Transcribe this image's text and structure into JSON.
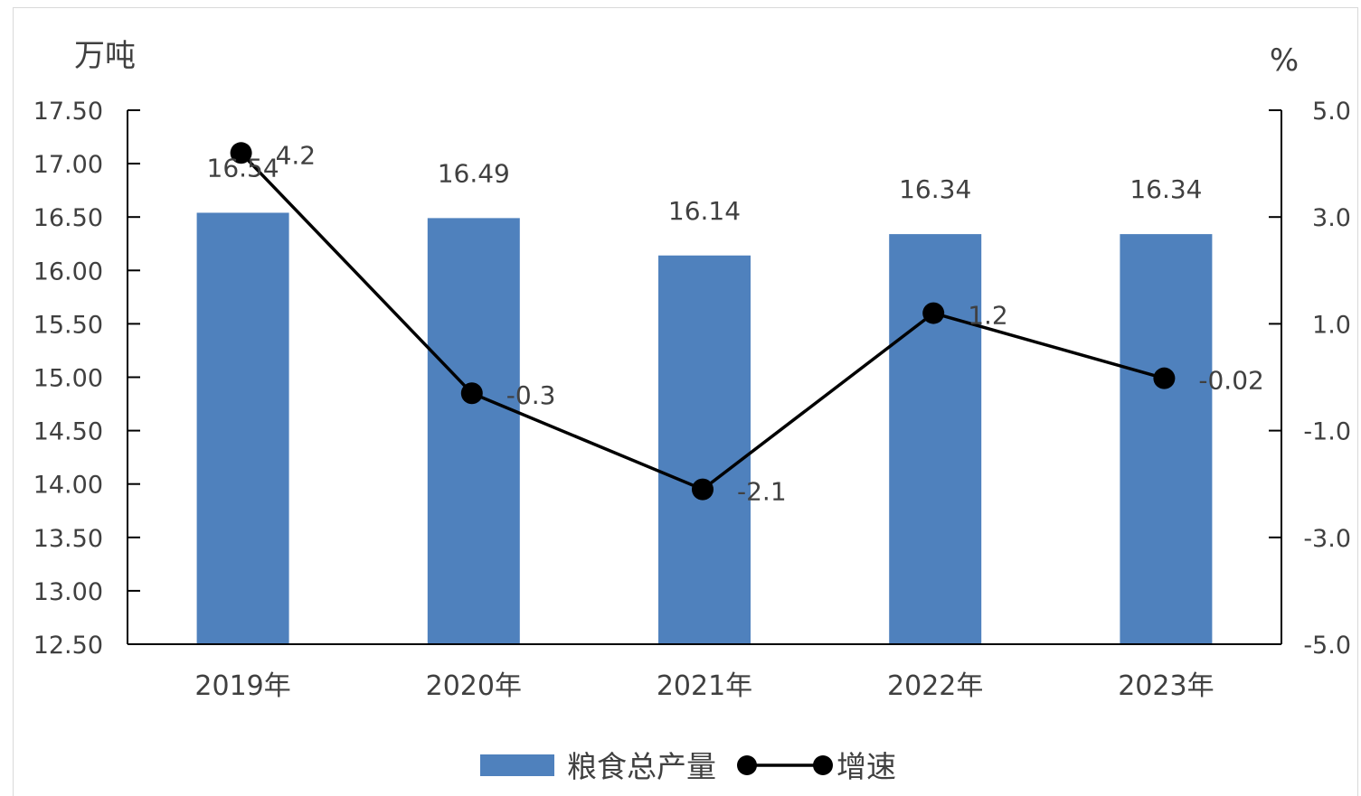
{
  "chart_data": {
    "type": "bar",
    "categories": [
      "2019年",
      "2020年",
      "2021年",
      "2022年",
      "2023年"
    ],
    "series": [
      {
        "name": "粮食总产量",
        "type": "bar",
        "axis": "left",
        "color": "#4f81bd",
        "values": [
          16.54,
          16.49,
          16.14,
          16.34,
          16.34
        ],
        "labels": [
          "16.54",
          "16.49",
          "16.14",
          "16.34",
          "16.34"
        ]
      },
      {
        "name": "增速",
        "type": "line",
        "axis": "right",
        "color": "#000000",
        "values": [
          4.2,
          -0.3,
          -2.1,
          1.2,
          -0.02
        ],
        "labels": [
          "4.2",
          "-0.3",
          "-2.1",
          "1.2",
          "-0.02"
        ]
      }
    ],
    "left_axis": {
      "unit": "万吨",
      "ylim": [
        12.5,
        17.5
      ],
      "ticks": [
        "12.50",
        "13.00",
        "13.50",
        "14.00",
        "14.50",
        "15.00",
        "15.50",
        "16.00",
        "16.50",
        "17.00",
        "17.50"
      ]
    },
    "right_axis": {
      "unit": "%",
      "ylim": [
        -5.0,
        5.0
      ],
      "ticks": [
        "-5.0",
        "-3.0",
        "-1.0",
        "1.0",
        "3.0",
        "5.0"
      ]
    },
    "grid": false,
    "legend": "bottom-center"
  }
}
